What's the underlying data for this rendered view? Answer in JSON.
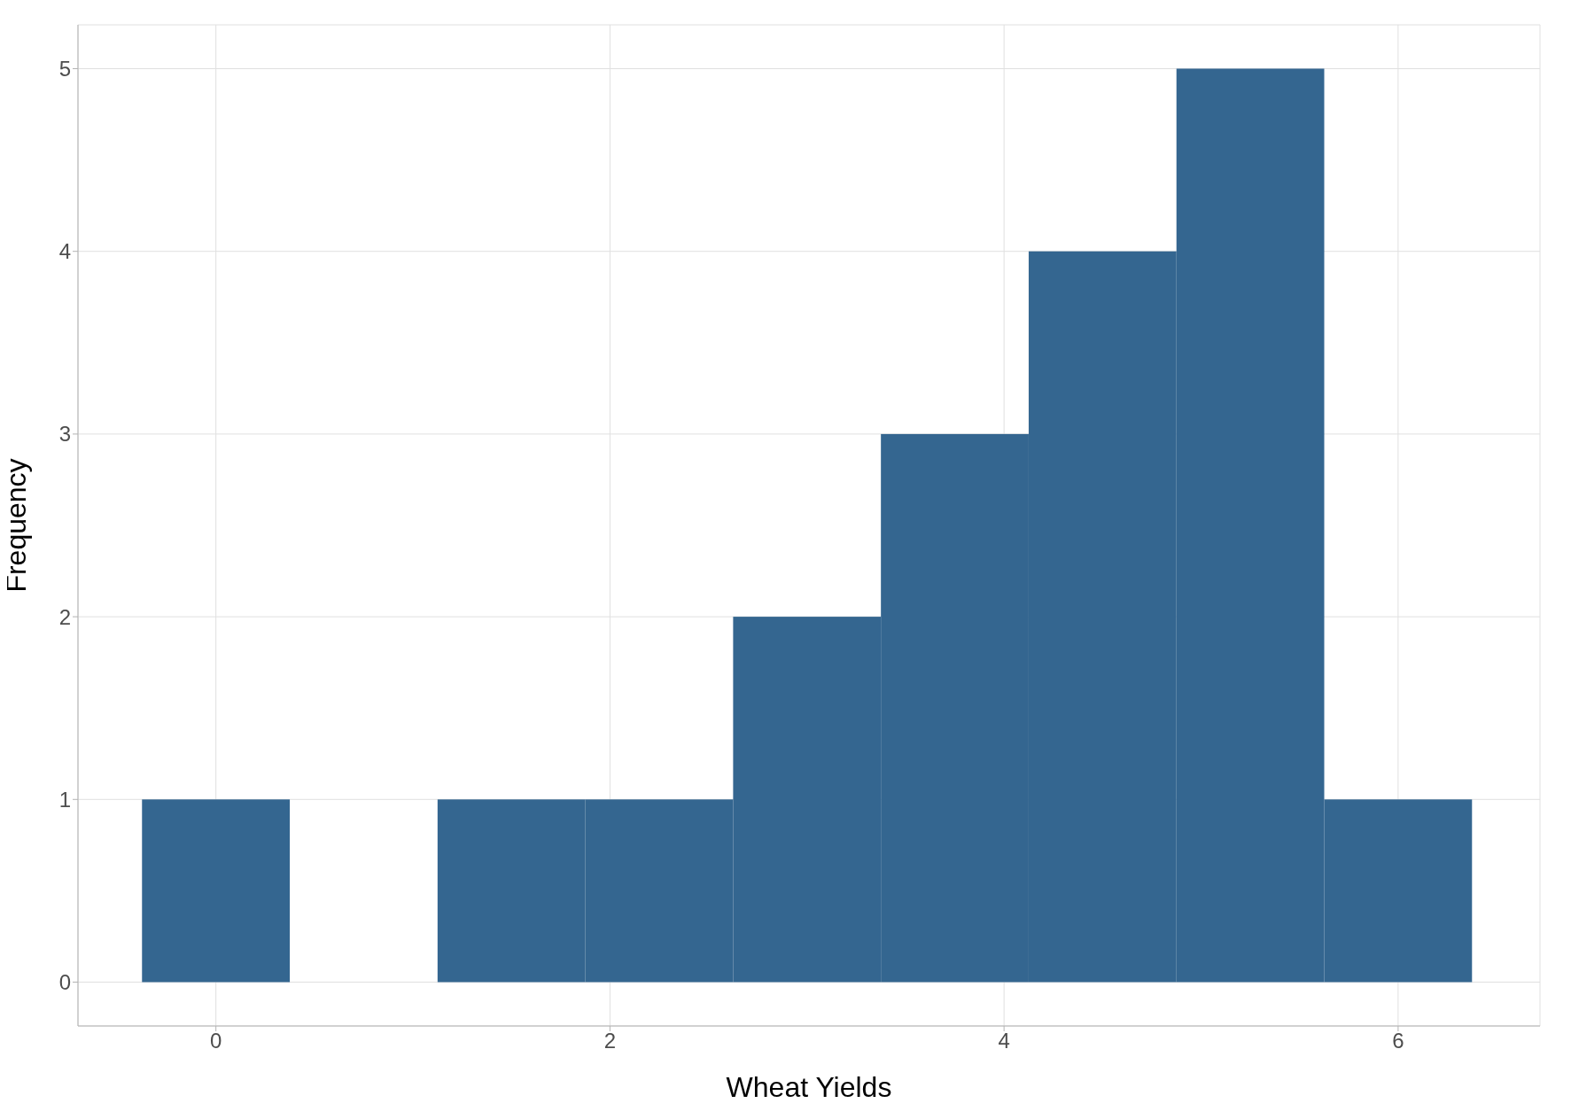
{
  "chart_data": {
    "type": "histogram",
    "xlabel": "Wheat Yields",
    "ylabel": "Frequency",
    "bins": [
      -0.375,
      0.375,
      1.125,
      1.875,
      2.625,
      3.375,
      4.125,
      4.875,
      5.625,
      6.375
    ],
    "values": [
      1,
      0,
      1,
      1,
      2,
      3,
      4,
      5,
      1
    ],
    "color": "#346690",
    "xlim": [
      -0.7,
      6.72
    ],
    "xticks": [
      0,
      2,
      4,
      6
    ],
    "ylim": [
      -0.24,
      5.24
    ],
    "yticks": [
      0,
      1,
      2,
      3,
      4,
      5
    ],
    "grid": true
  }
}
